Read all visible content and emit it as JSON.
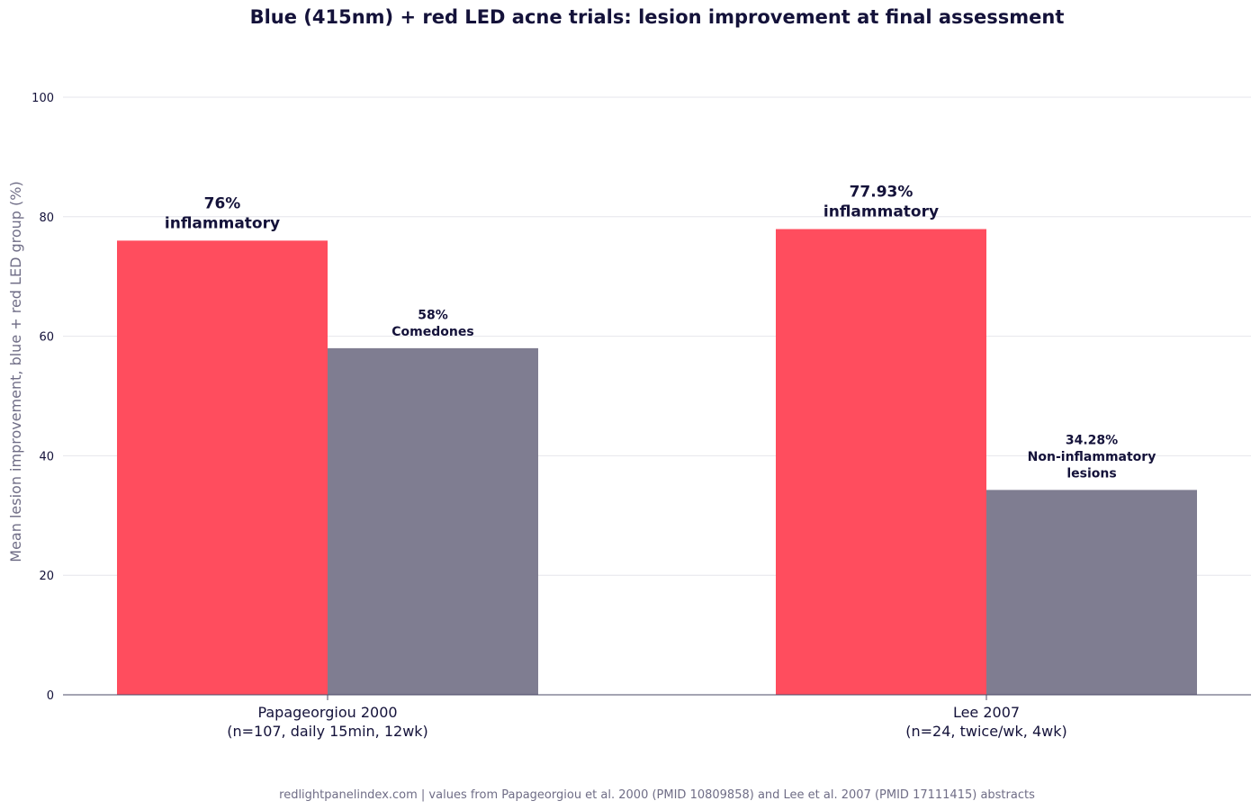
{
  "chart_data": {
    "type": "bar",
    "title": "Blue (415nm) + red LED acne trials: lesion improvement at final assessment",
    "ylabel": "Mean lesion improvement, blue + red LED group (%)",
    "xlabel": "",
    "ylim": [
      0,
      100
    ],
    "yticks": [
      0,
      20,
      40,
      60,
      80,
      100
    ],
    "grid": true,
    "categories": [
      [
        "Papageorgiou 2000",
        "(n=107, daily 15min, 12wk)"
      ],
      [
        "Lee 2007",
        "(n=24, twice/wk, 4wk)"
      ]
    ],
    "series": [
      {
        "color": "#ff4d5e",
        "values": [
          76,
          77.93
        ],
        "labels": [
          [
            "76%",
            "inflammatory"
          ],
          [
            "77.93%",
            "inflammatory"
          ]
        ]
      },
      {
        "color": "#7f7d91",
        "values": [
          58,
          34.28
        ],
        "labels": [
          [
            "58%",
            "Comedones"
          ],
          [
            "34.28%",
            "Non-inflammatory",
            "lesions"
          ]
        ]
      }
    ]
  },
  "footer": "redlightpanelindex.com | values from Papageorgiou et al. 2000 (PMID 10809858) and Lee et al. 2007 (PMID 17111415) abstracts"
}
